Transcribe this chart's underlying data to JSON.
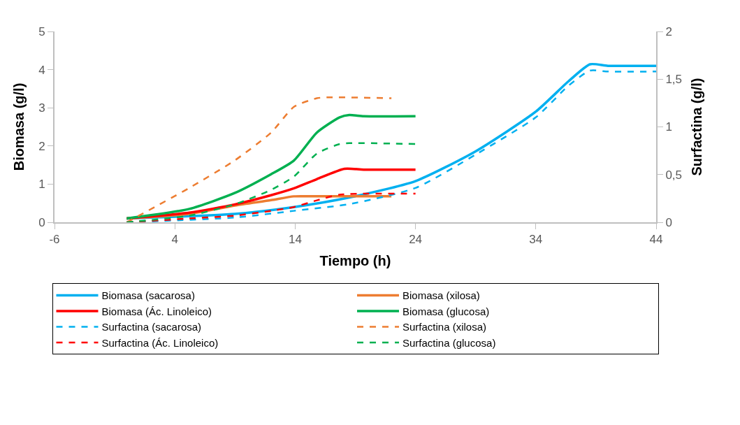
{
  "chart_data": {
    "type": "line",
    "xlabel": "Tiempo (h)",
    "ylabel": "Biomasa (g/l)",
    "y2label": "Surfactina (g/l)",
    "xlim": [
      -6,
      44
    ],
    "xticks": [
      -6,
      4,
      14,
      24,
      34,
      44
    ],
    "ylim": [
      0,
      5
    ],
    "yticks": [
      0,
      1,
      2,
      3,
      4,
      5
    ],
    "y2lim": [
      0,
      2
    ],
    "y2ticks": [
      0,
      {
        "value": 0.5,
        "label": "0,5"
      },
      1,
      {
        "value": 1.5,
        "label": "1,5"
      },
      2
    ],
    "legend": "bottom",
    "marker": "none",
    "series": [
      {
        "name": "Biomasa (sacarosa)",
        "color": "#00b0f0",
        "line_style": "solid",
        "x": [
          0,
          9,
          13.9,
          18.5,
          24,
          29,
          34,
          36.7,
          38.5,
          40,
          44
        ],
        "values": [
          0.1,
          0.22,
          0.4,
          0.65,
          1.08,
          1.86,
          2.9,
          3.69,
          4.14,
          4.1,
          4.1
        ]
      },
      {
        "name": "Biomasa (xilosa)",
        "color": "#ed7d31",
        "line_style": "solid",
        "x": [
          0,
          5.2,
          9,
          12,
          13.9,
          15.8,
          22
        ],
        "values": [
          0.1,
          0.22,
          0.44,
          0.58,
          0.68,
          0.68,
          0.68
        ]
      },
      {
        "name": "Biomasa (Ác. Linoleico)",
        "color": "#ff0000",
        "line_style": "solid",
        "x": [
          0,
          5.2,
          9,
          12,
          13.9,
          15.8,
          18.1,
          19.7,
          24
        ],
        "values": [
          0.1,
          0.25,
          0.47,
          0.71,
          0.89,
          1.13,
          1.4,
          1.38,
          1.38
        ]
      },
      {
        "name": "Biomasa (glucosa)",
        "color": "#00b050",
        "line_style": "solid",
        "x": [
          0,
          5.2,
          9,
          12,
          13.9,
          15.8,
          17.7,
          18.5,
          19.7,
          24
        ],
        "values": [
          0.1,
          0.35,
          0.77,
          1.26,
          1.62,
          2.35,
          2.75,
          2.81,
          2.78,
          2.78
        ]
      },
      {
        "name": "Surfactina (sacarosa)",
        "color": "#00b0f0",
        "line_style": "dashed",
        "axis": "y2",
        "x": [
          0,
          9,
          13.9,
          18.5,
          24,
          29,
          34,
          36.7,
          38.5,
          40,
          44
        ],
        "values": [
          0,
          0.05,
          0.12,
          0.19,
          0.36,
          0.71,
          1.1,
          1.43,
          1.59,
          1.58,
          1.58
        ]
      },
      {
        "name": "Surfactina (xilosa)",
        "color": "#ed7d31",
        "line_style": "dashed",
        "axis": "y2",
        "x": [
          0,
          5.2,
          9,
          12,
          13.9,
          15.8,
          16.8,
          22
        ],
        "values": [
          0,
          0.36,
          0.65,
          0.94,
          1.21,
          1.3,
          1.31,
          1.3
        ]
      },
      {
        "name": "Surfactina (Ác. Linoleico)",
        "color": "#ff0000",
        "line_style": "dashed",
        "axis": "y2",
        "x": [
          0,
          5.2,
          9,
          12,
          13.9,
          15.8,
          17.7,
          24
        ],
        "values": [
          0,
          0.04,
          0.07,
          0.12,
          0.16,
          0.23,
          0.29,
          0.3
        ]
      },
      {
        "name": "Surfactina (glucosa)",
        "color": "#00b050",
        "line_style": "dashed",
        "axis": "y2",
        "x": [
          0,
          5.2,
          9,
          12,
          13.9,
          15.8,
          17.7,
          18.5,
          24
        ],
        "values": [
          0,
          0.07,
          0.19,
          0.34,
          0.48,
          0.72,
          0.82,
          0.83,
          0.82
        ]
      }
    ]
  }
}
